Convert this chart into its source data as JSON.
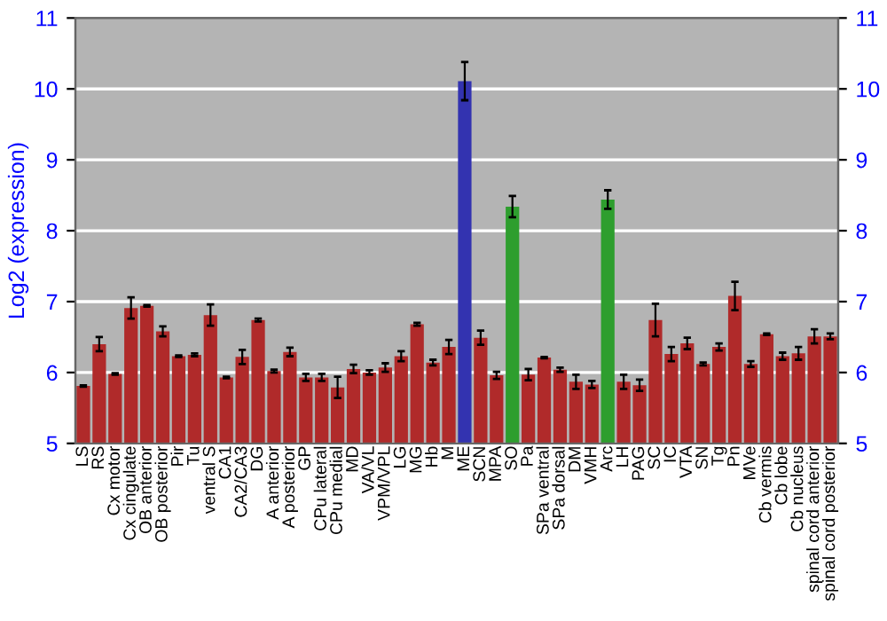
{
  "chart_data": {
    "type": "bar",
    "ylabel": "Log2 (expression)",
    "categories": [
      "LS",
      "RS",
      "Cx motor",
      "Cx cingulate",
      "OB anterior",
      "OB posterior",
      "Pir",
      "Tu",
      "ventral S",
      "CA1",
      "CA2/CA3",
      "DG",
      "A anterior",
      "A posterior",
      "GP",
      "CPu lateral",
      "CPu medial",
      "MD",
      "VA/VL",
      "VPM/VPL",
      "LG",
      "MG",
      "Hb",
      "M",
      "ME",
      "SCN",
      "MPA",
      "SO",
      "Pa",
      "SPa ventral",
      "SPa dorsal",
      "DM",
      "VMH",
      "Arc",
      "LH",
      "PAG",
      "SC",
      "IC",
      "VTA",
      "SN",
      "Tg",
      "Pn",
      "MVe",
      "Cb vermis",
      "Cb lobe",
      "Cb nucleus",
      "spinal cord anterior",
      "spinal cord posterior"
    ],
    "values": [
      5.81,
      6.4,
      5.98,
      6.91,
      6.94,
      6.58,
      6.23,
      6.25,
      6.81,
      5.93,
      6.22,
      6.74,
      6.02,
      6.29,
      5.93,
      5.93,
      5.79,
      6.05,
      6.0,
      6.07,
      6.23,
      6.68,
      6.14,
      6.36,
      10.11,
      6.49,
      5.96,
      8.34,
      5.97,
      6.21,
      6.04,
      5.87,
      5.83,
      8.44,
      5.87,
      5.82,
      6.74,
      6.26,
      6.41,
      6.12,
      6.36,
      7.08,
      6.12,
      6.54,
      6.23,
      6.27,
      6.51,
      6.51
    ],
    "errors": [
      0.01,
      0.1,
      0.01,
      0.15,
      0.01,
      0.07,
      0.01,
      0.02,
      0.15,
      0.01,
      0.1,
      0.02,
      0.02,
      0.06,
      0.05,
      0.05,
      0.15,
      0.06,
      0.03,
      0.06,
      0.07,
      0.02,
      0.04,
      0.1,
      0.27,
      0.1,
      0.05,
      0.15,
      0.08,
      0.01,
      0.03,
      0.1,
      0.05,
      0.13,
      0.1,
      0.08,
      0.23,
      0.1,
      0.08,
      0.02,
      0.05,
      0.2,
      0.04,
      0.01,
      0.05,
      0.09,
      0.1,
      0.04
    ],
    "colors": [
      "#b02a2a",
      "#b02a2a",
      "#b02a2a",
      "#b02a2a",
      "#b02a2a",
      "#b02a2a",
      "#b02a2a",
      "#b02a2a",
      "#b02a2a",
      "#b02a2a",
      "#b02a2a",
      "#b02a2a",
      "#b02a2a",
      "#b02a2a",
      "#b02a2a",
      "#b02a2a",
      "#b02a2a",
      "#b02a2a",
      "#b02a2a",
      "#b02a2a",
      "#b02a2a",
      "#b02a2a",
      "#b02a2a",
      "#b02a2a",
      "#3333b0",
      "#b02a2a",
      "#b02a2a",
      "#2e9e2e",
      "#b02a2a",
      "#b02a2a",
      "#b02a2a",
      "#b02a2a",
      "#b02a2a",
      "#2e9e2e",
      "#b02a2a",
      "#b02a2a",
      "#b02a2a",
      "#b02a2a",
      "#b02a2a",
      "#b02a2a",
      "#b02a2a",
      "#b02a2a",
      "#b02a2a",
      "#b02a2a",
      "#b02a2a",
      "#b02a2a",
      "#b02a2a",
      "#b02a2a"
    ],
    "ylim": [
      5,
      11
    ],
    "yticks": [
      5,
      6,
      7,
      8,
      9,
      10,
      11
    ],
    "y2lim": [
      5,
      11
    ],
    "y2ticks": [
      5,
      6,
      7,
      8,
      9,
      10,
      11
    ],
    "grid": "y"
  }
}
